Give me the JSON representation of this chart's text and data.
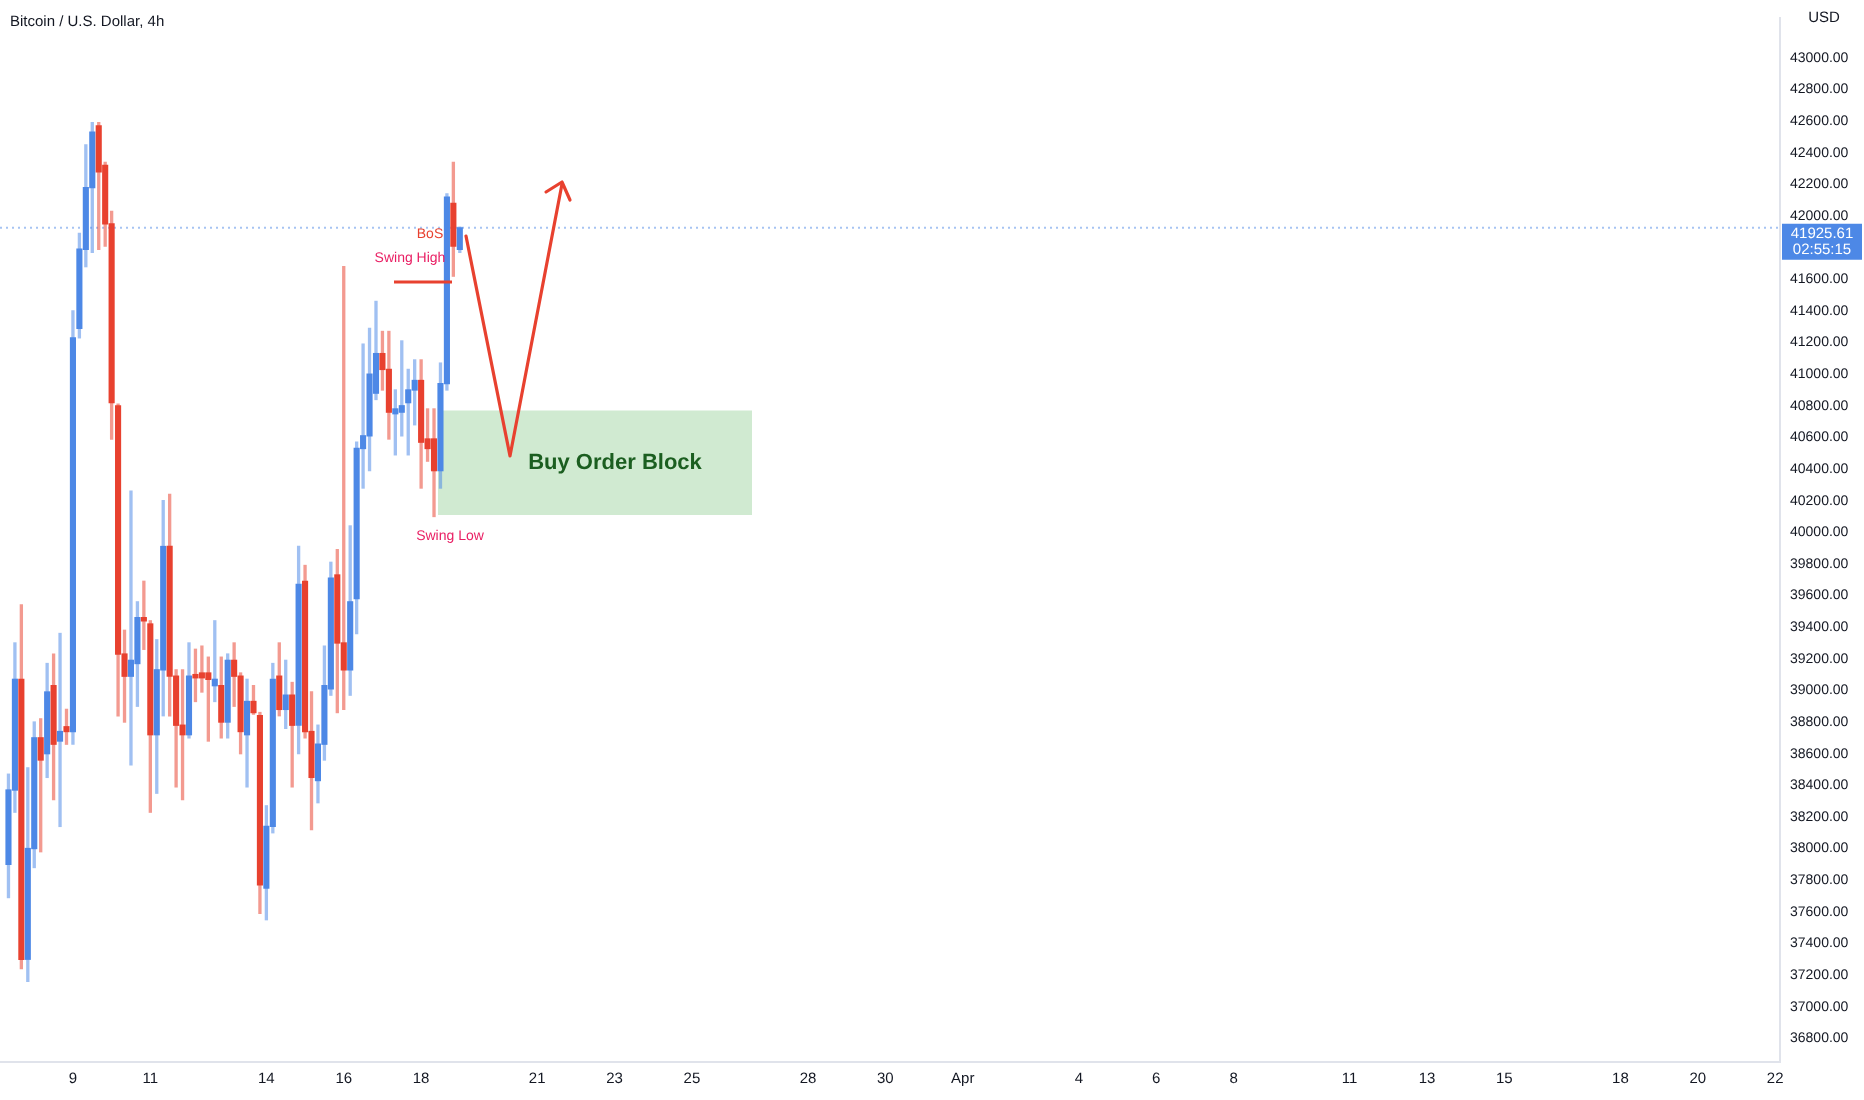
{
  "chart_data": {
    "type": "candlestick",
    "title": "Bitcoin / U.S. Dollar, 4h",
    "ylabel": "USD",
    "x": [
      "--03-07T08:00",
      "--03-07T12:00",
      "--03-07T16:00",
      "--03-07T20:00",
      "--03-08T00:00",
      "--03-08T04:00",
      "--03-08T08:00",
      "--03-08T12:00",
      "--03-08T16:00",
      "--03-08T20:00",
      "--03-09T00:00",
      "--03-09T04:00",
      "--03-09T08:00",
      "--03-09T12:00",
      "--03-09T16:00",
      "--03-09T20:00",
      "--03-10T00:00",
      "--03-10T04:00",
      "--03-10T08:00",
      "--03-10T12:00",
      "--03-10T16:00",
      "--03-10T20:00",
      "--03-11T00:00",
      "--03-11T04:00",
      "--03-11T08:00",
      "--03-11T12:00",
      "--03-11T16:00",
      "--03-11T20:00",
      "--03-12T00:00",
      "--03-12T04:00",
      "--03-12T08:00",
      "--03-12T12:00",
      "--03-12T16:00",
      "--03-12T20:00",
      "--03-13T00:00",
      "--03-13T04:00",
      "--03-13T08:00",
      "--03-13T12:00",
      "--03-13T16:00",
      "--03-13T20:00",
      "--03-14T00:00",
      "--03-14T04:00",
      "--03-14T08:00",
      "--03-14T12:00",
      "--03-14T16:00",
      "--03-14T20:00",
      "--03-15T00:00",
      "--03-15T04:00",
      "--03-15T08:00",
      "--03-15T12:00",
      "--03-15T16:00",
      "--03-15T20:00",
      "--03-16T00:00",
      "--03-16T04:00",
      "--03-16T08:00",
      "--03-16T12:00",
      "--03-16T16:00",
      "--03-16T20:00",
      "--03-17T00:00",
      "--03-17T04:00",
      "--03-17T08:00",
      "--03-17T12:00",
      "--03-17T16:00",
      "--03-17T20:00",
      "--03-18T00:00",
      "--03-18T04:00",
      "--03-18T08:00",
      "--03-18T12:00",
      "--03-18T16:00",
      "--03-18T20:00",
      "--03-19T00:00"
    ],
    "ohlc": [
      [
        37900,
        38470,
        37690,
        38370
      ],
      [
        38370,
        39300,
        38230,
        39070
      ],
      [
        39070,
        39540,
        37240,
        37300
      ],
      [
        37300,
        38510,
        37160,
        38000
      ],
      [
        38000,
        38800,
        37880,
        38700
      ],
      [
        38700,
        38820,
        37980,
        38560
      ],
      [
        38600,
        39170,
        38450,
        38990
      ],
      [
        39030,
        39230,
        38310,
        38660
      ],
      [
        38680,
        39360,
        38140,
        38740
      ],
      [
        38770,
        38880,
        38660,
        38740
      ],
      [
        38740,
        41400,
        38660,
        41230
      ],
      [
        41290,
        41890,
        41230,
        41790
      ],
      [
        41790,
        42450,
        41680,
        42180
      ],
      [
        42180,
        42590,
        41770,
        42530
      ],
      [
        42570,
        42590,
        41790,
        42280
      ],
      [
        42320,
        42340,
        41810,
        41950
      ],
      [
        41950,
        42030,
        40590,
        40820
      ],
      [
        40800,
        40810,
        38840,
        39230
      ],
      [
        39230,
        39380,
        38800,
        39090
      ],
      [
        39090,
        40260,
        38530,
        39190
      ],
      [
        39170,
        39560,
        38900,
        39460
      ],
      [
        39460,
        39690,
        39260,
        39440
      ],
      [
        39420,
        39440,
        38230,
        38720
      ],
      [
        38720,
        39320,
        38350,
        39130
      ],
      [
        39130,
        40200,
        38840,
        39910
      ],
      [
        39910,
        40240,
        38840,
        39090
      ],
      [
        39090,
        39130,
        38390,
        38780
      ],
      [
        38780,
        39130,
        38310,
        38720
      ],
      [
        38720,
        39300,
        38700,
        39090
      ],
      [
        39100,
        39260,
        38930,
        39080
      ],
      [
        39110,
        39280,
        38990,
        39080
      ],
      [
        39110,
        39210,
        38680,
        39070
      ],
      [
        39030,
        39440,
        38930,
        39070
      ],
      [
        39030,
        39210,
        38700,
        38800
      ],
      [
        38800,
        39230,
        38700,
        39190
      ],
      [
        39190,
        39300,
        38900,
        39090
      ],
      [
        39090,
        39110,
        38600,
        38740
      ],
      [
        38720,
        39070,
        38390,
        38930
      ],
      [
        38930,
        39030,
        38850,
        38860
      ],
      [
        38840,
        38860,
        37590,
        37770
      ],
      [
        37750,
        38270,
        37550,
        38140
      ],
      [
        38140,
        39170,
        38100,
        39070
      ],
      [
        39090,
        39300,
        38840,
        38880
      ],
      [
        38880,
        39190,
        38760,
        38970
      ],
      [
        38970,
        39050,
        38390,
        38780
      ],
      [
        38780,
        39910,
        38600,
        39670
      ],
      [
        39690,
        39790,
        38700,
        38740
      ],
      [
        38740,
        38990,
        38120,
        38450
      ],
      [
        38430,
        38780,
        38290,
        38660
      ],
      [
        38660,
        39280,
        38560,
        39030
      ],
      [
        39010,
        39810,
        38970,
        39710
      ],
      [
        39730,
        39890,
        38860,
        39300
      ],
      [
        39300,
        41680,
        38880,
        39130
      ],
      [
        39130,
        40040,
        38970,
        39560
      ],
      [
        39580,
        40570,
        39360,
        40530
      ],
      [
        40530,
        41190,
        40280,
        40610
      ],
      [
        40610,
        41290,
        40390,
        41000
      ],
      [
        40880,
        41460,
        40840,
        41130
      ],
      [
        41130,
        41270,
        40900,
        41030
      ],
      [
        41030,
        41270,
        40590,
        40760
      ],
      [
        40750,
        40900,
        40490,
        40780
      ],
      [
        40760,
        41210,
        40610,
        40800
      ],
      [
        40820,
        41030,
        40490,
        40900
      ],
      [
        40900,
        41090,
        40680,
        40960
      ],
      [
        40960,
        41090,
        40280,
        40570
      ],
      [
        40590,
        40780,
        40450,
        40530
      ],
      [
        40590,
        40780,
        40100,
        40390
      ],
      [
        40390,
        41070,
        40280,
        40940
      ],
      [
        40940,
        42140,
        40900,
        42120
      ],
      [
        42080,
        42340,
        41620,
        41810
      ],
      [
        41790,
        41930,
        41770,
        41925.61
      ]
    ],
    "colors": [
      "#4d88e6",
      "#4d88e6",
      "#e8412f",
      "#4d88e6",
      "#4d88e6",
      "#e8412f",
      "#4d88e6",
      "#e8412f",
      "#4d88e6",
      "#e8412f",
      "#4d88e6",
      "#4d88e6",
      "#4d88e6",
      "#4d88e6",
      "#e8412f",
      "#e8412f",
      "#e8412f",
      "#e8412f",
      "#e8412f",
      "#4d88e6",
      "#4d88e6",
      "#e8412f",
      "#e8412f",
      "#4d88e6",
      "#4d88e6",
      "#e8412f",
      "#e8412f",
      "#e8412f",
      "#4d88e6",
      "#e8412f",
      "#e8412f",
      "#e8412f",
      "#4d88e6",
      "#e8412f",
      "#4d88e6",
      "#e8412f",
      "#e8412f",
      "#4d88e6",
      "#e8412f",
      "#e8412f",
      "#4d88e6",
      "#4d88e6",
      "#e8412f",
      "#4d88e6",
      "#e8412f",
      "#4d88e6",
      "#e8412f",
      "#e8412f",
      "#4d88e6",
      "#4d88e6",
      "#4d88e6",
      "#e8412f",
      "#e8412f",
      "#4d88e6",
      "#4d88e6",
      "#4d88e6",
      "#4d88e6",
      "#4d88e6",
      "#e8412f",
      "#e8412f",
      "#4d88e6",
      "#4d88e6",
      "#4d88e6",
      "#4d88e6",
      "#e8412f",
      "#e8412f",
      "#e8412f",
      "#4d88e6",
      "#4d88e6",
      "#e8412f",
      "#4d88e6"
    ],
    "xlim": [
      "--03-07T02:45",
      "--04-22T03:00"
    ],
    "xticks": [
      {
        "value": "--03-09T00:00",
        "label": "9"
      },
      {
        "value": "--03-11T00:00",
        "label": "11"
      },
      {
        "value": "--03-14T00:00",
        "label": "14"
      },
      {
        "value": "--03-16T00:00",
        "label": "16"
      },
      {
        "value": "--03-18T00:00",
        "label": "18"
      },
      {
        "value": "--03-21T00:00",
        "label": "21"
      },
      {
        "value": "--03-23T00:00",
        "label": "23"
      },
      {
        "value": "--03-25T00:00",
        "label": "25"
      },
      {
        "value": "--03-28T00:00",
        "label": "28"
      },
      {
        "value": "--03-30T00:00",
        "label": "30"
      },
      {
        "value": "--04-01T00:00",
        "label": "Apr"
      },
      {
        "value": "--04-04T00:00",
        "label": "4"
      },
      {
        "value": "--04-06T00:00",
        "label": "6"
      },
      {
        "value": "--04-08T00:00",
        "label": "8"
      },
      {
        "value": "--04-11T00:00",
        "label": "11"
      },
      {
        "value": "--04-13T00:00",
        "label": "13"
      },
      {
        "value": "--04-15T00:00",
        "label": "15"
      },
      {
        "value": "--04-18T00:00",
        "label": "18"
      },
      {
        "value": "--04-20T00:00",
        "label": "20"
      },
      {
        "value": "--04-22T00:00",
        "label": "22"
      }
    ],
    "ylim": [
      36650,
      43250
    ],
    "yticks": [
      {
        "value": 36800,
        "label": "36800.00"
      },
      {
        "value": 37000,
        "label": "37000.00"
      },
      {
        "value": 37200,
        "label": "37200.00"
      },
      {
        "value": 37400,
        "label": "37400.00"
      },
      {
        "value": 37600,
        "label": "37600.00"
      },
      {
        "value": 37800,
        "label": "37800.00"
      },
      {
        "value": 38000,
        "label": "38000.00"
      },
      {
        "value": 38200,
        "label": "38200.00"
      },
      {
        "value": 38400,
        "label": "38400.00"
      },
      {
        "value": 38600,
        "label": "38600.00"
      },
      {
        "value": 38800,
        "label": "38800.00"
      },
      {
        "value": 39000,
        "label": "39000.00"
      },
      {
        "value": 39200,
        "label": "39200.00"
      },
      {
        "value": 39400,
        "label": "39400.00"
      },
      {
        "value": 39600,
        "label": "39600.00"
      },
      {
        "value": 39800,
        "label": "39800.00"
      },
      {
        "value": 40000,
        "label": "40000.00"
      },
      {
        "value": 40200,
        "label": "40200.00"
      },
      {
        "value": 40400,
        "label": "40400.00"
      },
      {
        "value": 40600,
        "label": "40600.00"
      },
      {
        "value": 40800,
        "label": "40800.00"
      },
      {
        "value": 41000,
        "label": "41000.00"
      },
      {
        "value": 41200,
        "label": "41200.00"
      },
      {
        "value": 41400,
        "label": "41400.00"
      },
      {
        "value": 41600,
        "label": "41600.00"
      },
      {
        "value": 42000,
        "label": "42000.00"
      },
      {
        "value": 42200,
        "label": "42200.00"
      },
      {
        "value": 42400,
        "label": "42400.00"
      },
      {
        "value": 42600,
        "label": "42600.00"
      },
      {
        "value": 42800,
        "label": "42800.00"
      },
      {
        "value": 43000,
        "label": "43000.00"
      }
    ],
    "ref_lines": [
      {
        "axis": "y",
        "value": 41925.61,
        "label": "41925.61",
        "color": "#4d88e6",
        "line_style": "dotted"
      }
    ],
    "bands": [
      {
        "axis": "y",
        "from": 40110,
        "to": 40770,
        "label": "Buy Order Block",
        "color": "#c8e6c9"
      }
    ],
    "annotations": [
      "BoS",
      "Swing High",
      "Swing Low",
      "02:55:15"
    ]
  }
}
